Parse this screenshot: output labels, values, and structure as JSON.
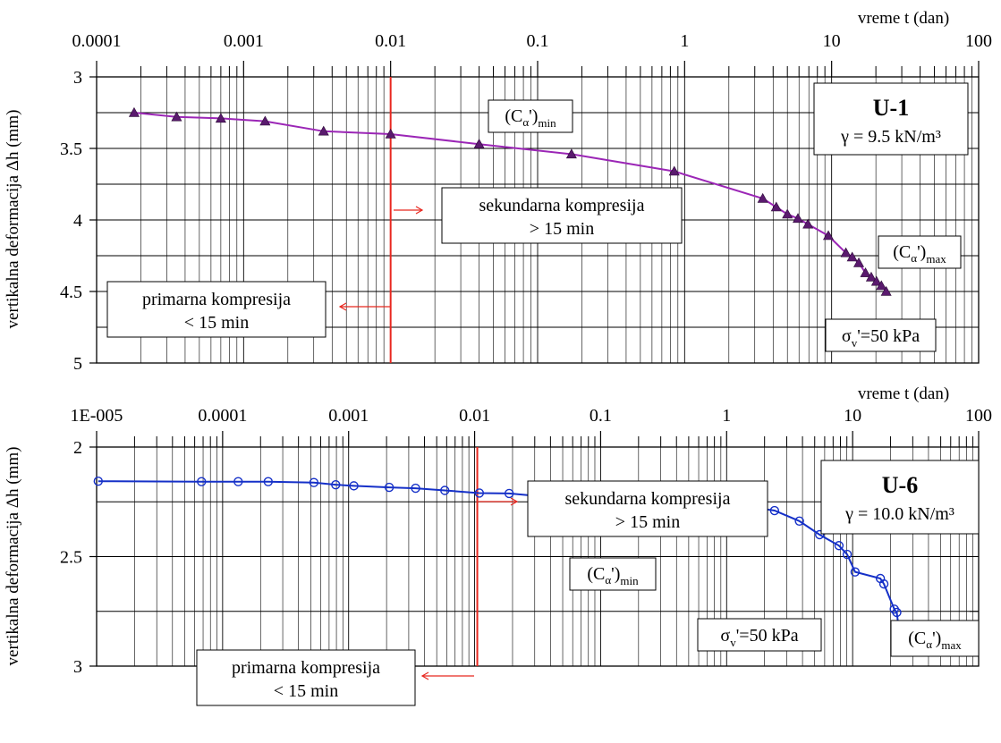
{
  "chart_data": [
    {
      "type": "line",
      "xscale": "log",
      "yaxis_inverted": true,
      "grid": true,
      "xlabel": "vreme t (dan)",
      "ylabel": "vertikalna deformacija Δh  (mm)",
      "xlim": [
        0.0001,
        100
      ],
      "ylim": [
        3,
        5
      ],
      "xticks": [
        {
          "value": 0.0001,
          "label": "0.0001"
        },
        {
          "value": 0.001,
          "label": "0.001"
        },
        {
          "value": 0.01,
          "label": "0.01"
        },
        {
          "value": 0.1,
          "label": "0.1"
        },
        {
          "value": 1,
          "label": "1"
        },
        {
          "value": 10,
          "label": "10"
        },
        {
          "value": 100,
          "label": "100"
        }
      ],
      "yticks": [
        {
          "value": 3,
          "label": "3"
        },
        {
          "value": 3.5,
          "label": "3.5"
        },
        {
          "value": 4,
          "label": "4"
        },
        {
          "value": 4.5,
          "label": "4.5"
        },
        {
          "value": 5,
          "label": "5"
        }
      ],
      "series": [
        {
          "marker": "triangle",
          "color": "#9b26b6",
          "marker_color": "#5a1a6e",
          "x": [
            0.00018,
            0.00035,
            0.0007,
            0.0014,
            0.0035,
            0.01,
            0.04,
            0.17,
            0.85,
            3.4,
            4.2,
            5.0,
            5.9,
            6.9,
            9.5,
            12.5,
            13.8,
            15.3,
            17.0,
            18.6,
            20.2,
            21.8,
            23.5
          ],
          "y": [
            3.25,
            3.28,
            3.29,
            3.31,
            3.38,
            3.4,
            3.47,
            3.54,
            3.66,
            3.85,
            3.91,
            3.96,
            3.99,
            4.03,
            4.11,
            4.23,
            4.26,
            4.3,
            4.37,
            4.4,
            4.43,
            4.46,
            4.5
          ]
        }
      ],
      "separator_x": 0.01,
      "separator_color": "#e8271f",
      "annotations": {
        "sample_id": "U-1",
        "gamma": "γ = 9.5 kN/m³",
        "sigma_sym": "σ",
        "sigma_sub": "v",
        "sigma_rest": "'=50 kPa",
        "calpha_open": "(C",
        "calpha_sym": "α",
        "calpha_close": "')",
        "calpha_min_sub": "min",
        "calpha_max_sub": "max",
        "sec_line1": "sekundarna kompresija",
        "sec_line2": "> 15 min",
        "prim_line1": "primarna kompresija",
        "prim_line2": "< 15 min"
      }
    },
    {
      "type": "line",
      "xscale": "log",
      "yaxis_inverted": true,
      "grid": true,
      "xlabel": "vreme t (dan)",
      "ylabel": "vertikalna deformacija Δh  (mm)",
      "xlim": [
        1e-05,
        100
      ],
      "ylim": [
        2,
        3
      ],
      "xticks": [
        {
          "value": 1e-05,
          "label": "1E-005"
        },
        {
          "value": 0.0001,
          "label": "0.0001"
        },
        {
          "value": 0.001,
          "label": "0.001"
        },
        {
          "value": 0.01,
          "label": "0.01"
        },
        {
          "value": 0.1,
          "label": "0.1"
        },
        {
          "value": 1,
          "label": "1"
        },
        {
          "value": 10,
          "label": "10"
        },
        {
          "value": 100,
          "label": "100"
        }
      ],
      "yticks": [
        {
          "value": 2,
          "label": "2"
        },
        {
          "value": 2.5,
          "label": "2.5"
        },
        {
          "value": 3,
          "label": "3"
        }
      ],
      "series": [
        {
          "marker": "circle",
          "color": "#1530c8",
          "x": [
            1.03e-05,
            6.8e-05,
            0.000133,
            0.00023,
            0.00053,
            0.00079,
            0.0011,
            0.0021,
            0.0034,
            0.0058,
            0.0109,
            0.0188,
            0.0294,
            0.0409,
            0.0745,
            0.347,
            1.09,
            2.4,
            3.78,
            5.47,
            7.79,
            9.05,
            10.46,
            16.6,
            17.7,
            21.4,
            22.4,
            23.3,
            24.3,
            25.4,
            26.5,
            28.2,
            30.0
          ],
          "y": [
            2.156,
            2.158,
            2.158,
            2.158,
            2.162,
            2.172,
            2.177,
            2.184,
            2.188,
            2.198,
            2.21,
            2.212,
            2.222,
            2.228,
            2.24,
            2.245,
            2.262,
            2.29,
            2.338,
            2.4,
            2.45,
            2.49,
            2.57,
            2.6,
            2.625,
            2.74,
            2.755,
            2.835,
            2.85,
            2.865,
            2.875,
            2.885,
            2.915
          ]
        }
      ],
      "separator_x": 0.0105,
      "separator_color": "#e8271f",
      "annotations": {
        "sample_id": "U-6",
        "gamma": "γ = 10.0 kN/m³",
        "sigma_sym": "σ",
        "sigma_sub": "v",
        "sigma_rest": "'=50 kPa",
        "calpha_open": "(C",
        "calpha_sym": "α",
        "calpha_close": "')",
        "calpha_min_sub": "min",
        "calpha_max_sub": "max",
        "sec_line1": "sekundarna kompresija",
        "sec_line2": "> 15 min",
        "prim_line1": "primarna kompresija",
        "prim_line2": "< 15 min"
      }
    }
  ]
}
